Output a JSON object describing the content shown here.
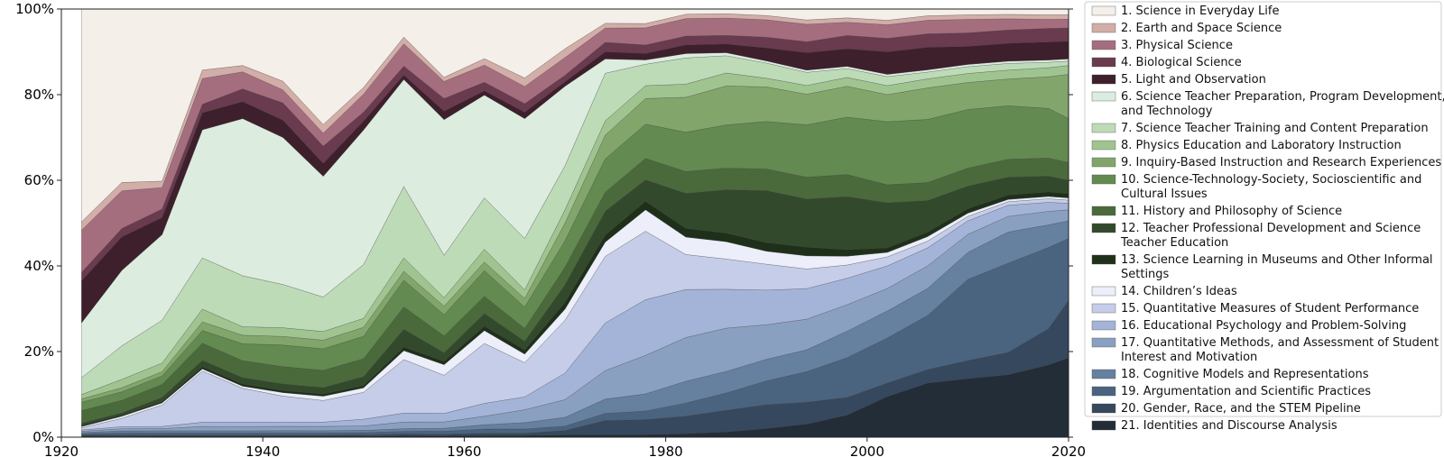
{
  "chart_data": {
    "type": "area",
    "stacked": true,
    "normalized": true,
    "x": [
      1922,
      1926,
      1930,
      1934,
      1938,
      1942,
      1946,
      1950,
      1954,
      1958,
      1962,
      1966,
      1970,
      1974,
      1978,
      1982,
      1986,
      1990,
      1994,
      1998,
      2002,
      2006,
      2010,
      2014,
      2018,
      2020
    ],
    "xlim": [
      1920,
      2020
    ],
    "ylim": [
      0,
      100
    ],
    "x_ticks": [
      "1920",
      "1940",
      "1960",
      "1980",
      "2000",
      "2020"
    ],
    "x_tick_values": [
      1920,
      1940,
      1960,
      1980,
      2000,
      2020
    ],
    "y_ticks": [
      "0%",
      "20%",
      "40%",
      "60%",
      "80%",
      "100%"
    ],
    "y_tick_values": [
      0,
      20,
      40,
      60,
      80,
      100
    ],
    "legend_position": "right",
    "series": [
      {
        "name": "21. Identities and Discourse Analysis",
        "color": "#222d38",
        "values": [
          0.2,
          0.2,
          0.2,
          0.2,
          0.2,
          0.2,
          0.2,
          0.2,
          0.3,
          0.3,
          0.4,
          0.4,
          0.5,
          0.5,
          0.6,
          0.8,
          1.2,
          2.0,
          3.0,
          5.0,
          9.0,
          12.0,
          13.0,
          14.0,
          16.0,
          18.0
        ]
      },
      {
        "name": "20. Gender, Race, and the STEM Pipeline",
        "color": "#36485e",
        "values": [
          0.3,
          0.3,
          0.3,
          0.3,
          0.3,
          0.3,
          0.3,
          0.3,
          0.4,
          0.4,
          0.5,
          0.5,
          1.0,
          3.0,
          3.5,
          4.0,
          5.0,
          5.5,
          5.0,
          4.0,
          3.0,
          3.0,
          4.0,
          5.0,
          8.0,
          13.0
        ]
      },
      {
        "name": "19. Argumentation and Scientific Practices",
        "color": "#4a6480",
        "values": [
          0.3,
          0.5,
          0.5,
          0.5,
          0.5,
          0.5,
          0.5,
          0.5,
          0.6,
          0.7,
          1.0,
          1.0,
          1.0,
          1.5,
          2.0,
          3.0,
          4.0,
          5.5,
          7.0,
          9.0,
          10.0,
          12.0,
          18.0,
          20.0,
          18.0,
          14.0
        ]
      },
      {
        "name": "18. Cognitive Models and Representations",
        "color": "#6680a0",
        "values": [
          0.3,
          0.5,
          0.5,
          0.5,
          0.5,
          0.5,
          0.5,
          0.5,
          0.6,
          0.7,
          1.0,
          1.5,
          2.0,
          3.0,
          4.0,
          5.0,
          5.0,
          5.0,
          5.0,
          6.0,
          6.0,
          6.0,
          6.0,
          7.0,
          5.0,
          4.0
        ]
      },
      {
        "name": "17. Quantitative Methods, and Assessment of Student Interest and Motivation",
        "color": "#8aa0c0",
        "values": [
          0.3,
          0.5,
          0.5,
          1.0,
          1.0,
          1.0,
          1.0,
          1.0,
          1.5,
          1.5,
          2.0,
          3.0,
          4.0,
          6.0,
          9.0,
          10.0,
          10.0,
          8.0,
          7.0,
          6.0,
          5.0,
          5.0,
          4.0,
          3.5,
          3.0,
          2.5
        ]
      },
      {
        "name": "16. Educational Psychology and Problem-Solving",
        "color": "#a4b4d8",
        "values": [
          0.3,
          0.5,
          0.5,
          1.0,
          1.0,
          1.0,
          1.0,
          1.5,
          2.0,
          2.0,
          3.0,
          3.0,
          6.0,
          10.0,
          13.0,
          11.0,
          9.0,
          8.0,
          7.0,
          6.0,
          5.0,
          4.0,
          3.0,
          2.5,
          2.0,
          1.5
        ]
      },
      {
        "name": "15. Quantitative Measures of Student Performance",
        "color": "#c6cde9",
        "values": [
          0.5,
          2.0,
          5.0,
          12.0,
          8.0,
          6.0,
          5.0,
          6.0,
          12.0,
          9.0,
          14.0,
          8.0,
          12.0,
          14.0,
          16.0,
          8.0,
          7.0,
          6.0,
          4.5,
          3.0,
          2.0,
          1.5,
          1.0,
          0.8,
          0.8,
          0.7
        ]
      },
      {
        "name": "14. Children's Ideas",
        "color": "#eceff9",
        "values": [
          0.3,
          0.5,
          0.5,
          0.5,
          0.5,
          0.8,
          1.0,
          1.0,
          2.0,
          2.5,
          3.0,
          2.0,
          2.5,
          3.0,
          5.0,
          4.0,
          4.0,
          3.0,
          3.0,
          2.0,
          1.0,
          1.0,
          0.7,
          0.5,
          0.5,
          0.5
        ]
      },
      {
        "name": "13. Science Learning in Museums and Other Informal Settings",
        "color": "#1f301a",
        "values": [
          0.3,
          0.3,
          0.3,
          0.5,
          0.5,
          0.5,
          0.5,
          0.5,
          0.8,
          0.8,
          1.0,
          1.0,
          1.5,
          1.5,
          2.0,
          2.0,
          2.0,
          2.0,
          2.0,
          1.5,
          1.0,
          1.0,
          1.0,
          1.0,
          1.0,
          1.0
        ]
      },
      {
        "name": "12. Teacher Professional Development and Science Teacher Education",
        "color": "#33492b",
        "values": [
          0.5,
          0.5,
          1.0,
          1.5,
          1.5,
          1.5,
          1.5,
          2.0,
          4.0,
          2.0,
          3.0,
          2.0,
          4.0,
          5.0,
          5.0,
          8.0,
          10.0,
          12.0,
          11.0,
          12.0,
          10.0,
          7.0,
          5.0,
          4.0,
          3.5,
          3.0
        ]
      },
      {
        "name": "11. History and Philosophy of Science",
        "color": "#4b6a3c",
        "values": [
          3.0,
          3.0,
          3.0,
          4.0,
          4.0,
          4.0,
          4.0,
          4.0,
          5.0,
          4.0,
          4.0,
          3.0,
          4.0,
          4.0,
          5.0,
          5.0,
          5.0,
          5.0,
          5.0,
          5.0,
          4.0,
          4.0,
          4.0,
          4.0,
          4.0,
          4.0
        ]
      },
      {
        "name": "10. Science-Technology-Society, Socioscientific and Cultural Issues",
        "color": "#638a50",
        "values": [
          2.0,
          2.0,
          2.0,
          3.0,
          4.0,
          5.0,
          5.0,
          5.0,
          6.0,
          5.0,
          6.0,
          5.0,
          6.0,
          7.0,
          8.0,
          9.0,
          10.0,
          11.0,
          12.0,
          13.0,
          14.0,
          14.0,
          13.0,
          12.0,
          11.0,
          10.0
        ]
      },
      {
        "name": "9. Inquiry-Based Instruction and Research Experiences",
        "color": "#82a56c",
        "values": [
          0.8,
          1.0,
          1.0,
          2.0,
          2.0,
          2.0,
          2.0,
          2.0,
          2.0,
          2.0,
          2.0,
          2.0,
          4.0,
          5.0,
          6.0,
          8.0,
          9.0,
          8.0,
          7.0,
          7.0,
          6.0,
          7.0,
          6.0,
          6.0,
          7.0,
          10.0
        ]
      },
      {
        "name": "8. Physics Education and Laboratory Instruction",
        "color": "#a0c490",
        "values": [
          1.0,
          2.0,
          2.0,
          3.0,
          2.0,
          2.0,
          2.0,
          2.0,
          3.0,
          2.0,
          3.0,
          2.0,
          3.0,
          3.0,
          3.0,
          3.0,
          3.0,
          2.0,
          2.0,
          2.0,
          2.0,
          2.0,
          2.0,
          2.0,
          2.0,
          2.0
        ]
      },
      {
        "name": "7. Science Teacher Training and Content Preparation",
        "color": "#bedbb8",
        "values": [
          4.0,
          8.0,
          10.0,
          12.0,
          12.0,
          10.0,
          8.0,
          12.0,
          16.0,
          10.0,
          12.0,
          12.0,
          10.0,
          10.0,
          5.0,
          6.0,
          4.0,
          3.5,
          3.0,
          2.0,
          2.0,
          1.5,
          1.5,
          1.5,
          1.2,
          1.0
        ]
      },
      {
        "name": "6. Science Teacher Preparation, Program Development, and Technology",
        "color": "#dcede0",
        "values": [
          13.0,
          18.0,
          20.0,
          30.0,
          37.0,
          34.0,
          28.0,
          30.0,
          24.0,
          32.0,
          24.0,
          28.0,
          18.0,
          3.0,
          1.0,
          1.0,
          0.7,
          0.5,
          0.5,
          0.5,
          0.5,
          0.5,
          0.5,
          0.5,
          0.5,
          0.5
        ]
      },
      {
        "name": "5. Light and Observation",
        "color": "#3e1f2c",
        "values": [
          10.0,
          8.0,
          4.0,
          4.0,
          4.0,
          4.0,
          3.0,
          2.0,
          1.0,
          2.0,
          1.0,
          1.5,
          1.0,
          1.5,
          1.5,
          2.0,
          2.0,
          3.0,
          4.0,
          4.0,
          5.0,
          5.0,
          4.0,
          4.0,
          4.0,
          4.0
        ]
      },
      {
        "name": "4. Biological Science",
        "color": "#6a3a4e",
        "values": [
          2.0,
          2.0,
          2.0,
          2.0,
          3.0,
          4.0,
          4.0,
          2.0,
          2.0,
          3.0,
          2.0,
          2.0,
          1.5,
          2.0,
          2.0,
          2.0,
          2.0,
          2.5,
          2.5,
          3.0,
          3.0,
          3.0,
          3.0,
          3.0,
          3.0,
          3.0
        ]
      },
      {
        "name": "3. Physical Science",
        "color": "#a56e7e",
        "values": [
          10.0,
          9.0,
          5.0,
          6.0,
          4.0,
          3.0,
          3.0,
          4.0,
          5.0,
          4.0,
          4.0,
          4.0,
          4.0,
          3.0,
          4.0,
          4.0,
          4.0,
          4.0,
          4.0,
          3.0,
          3.0,
          3.0,
          3.0,
          2.5,
          2.0,
          2.0
        ]
      },
      {
        "name": "2. Earth and Space Science",
        "color": "#d3ada8",
        "values": [
          2.0,
          2.0,
          1.5,
          2.0,
          1.5,
          2.0,
          2.0,
          1.5,
          1.5,
          1.0,
          1.5,
          2.0,
          2.0,
          1.0,
          1.0,
          1.0,
          1.0,
          1.0,
          1.0,
          1.0,
          1.0,
          1.0,
          1.0,
          1.0,
          1.0,
          1.0
        ]
      },
      {
        "name": "1. Science in Everyday Life",
        "color": "#f4efe9",
        "values": [
          50.5,
          41.4,
          40.2,
          14.3,
          13.3,
          16.7,
          26.8,
          17.5,
          6.3,
          16.1,
          11.6,
          16.1,
          9.0,
          3.0,
          3.4,
          1.2,
          1.1,
          1.5,
          2.5,
          2.0,
          2.5,
          1.5,
          1.3,
          1.2,
          1.3,
          1.3
        ]
      }
    ],
    "legend_entries": [
      "1. Science in Everyday Life",
      "2. Earth and Space Science",
      "3. Physical Science",
      "4. Biological Science",
      "5. Light and Observation",
      [
        "6. Science Teacher Preparation, Program Development,",
        "and Technology"
      ],
      "7. Science Teacher Training and Content Preparation",
      "8. Physics Education and Laboratory Instruction",
      "9. Inquiry-Based Instruction and Research Experiences",
      [
        "10. Science-Technology-Society, Socioscientific and",
        "Cultural Issues"
      ],
      "11. History and Philosophy of Science",
      [
        "12. Teacher Professional Development and Science",
        "Teacher Education"
      ],
      [
        "13. Science Learning in Museums and Other Informal",
        "Settings"
      ],
      "14. Children’s Ideas",
      "15. Quantitative Measures of Student Performance",
      "16. Educational Psychology and Problem-Solving",
      [
        "17. Quantitative Methods, and Assessment of Student",
        "Interest and Motivation"
      ],
      "18. Cognitive Models and Representations",
      "19. Argumentation and Scientific Practices",
      "20. Gender, Race, and the STEM Pipeline",
      "21. Identities and Discourse Analysis"
    ],
    "legend_colors": [
      "#f4efe9",
      "#d3ada8",
      "#a56e7e",
      "#6a3a4e",
      "#3e1f2c",
      "#dcede0",
      "#bedbb8",
      "#a0c490",
      "#82a56c",
      "#638a50",
      "#4b6a3c",
      "#33492b",
      "#1f301a",
      "#eceff9",
      "#c6cde9",
      "#a4b4d8",
      "#8aa0c0",
      "#6680a0",
      "#4a6480",
      "#36485e",
      "#222d38"
    ]
  }
}
